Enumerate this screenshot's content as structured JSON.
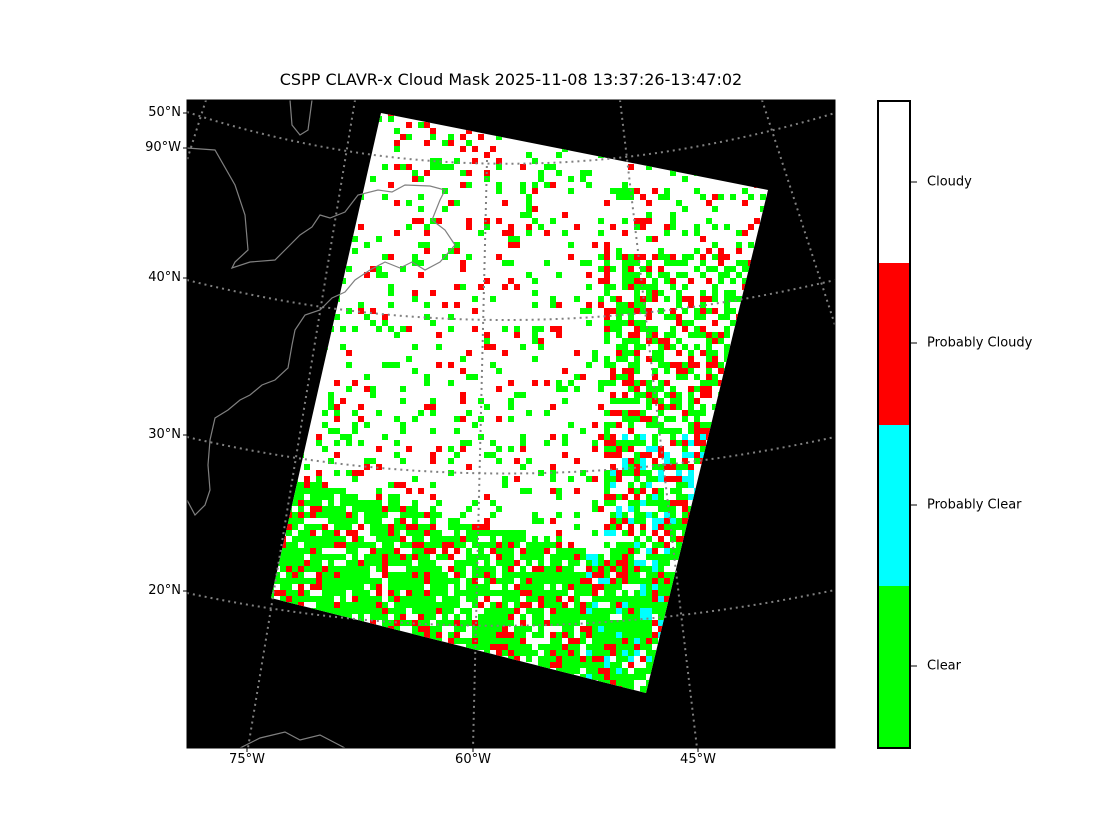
{
  "title": "CSPP CLAVR-x Cloud Mask 2025-11-08 13:37:26-13:47:02",
  "map": {
    "background_color": "#000000",
    "coastline_color": "#808080",
    "graticule_color": "#808080",
    "lat_labels": [
      "50°N",
      "90°W",
      "40°N",
      "30°N",
      "20°N"
    ],
    "lon_labels": [
      "75°W",
      "60°W",
      "45°W"
    ]
  },
  "colorbar": {
    "categories": [
      {
        "label": "Cloudy",
        "color": "#ffffff"
      },
      {
        "label": "Probably Cloudy",
        "color": "#ff0000"
      },
      {
        "label": "Probably Clear",
        "color": "#00ffff"
      },
      {
        "label": "Clear",
        "color": "#00ff00"
      }
    ]
  }
}
